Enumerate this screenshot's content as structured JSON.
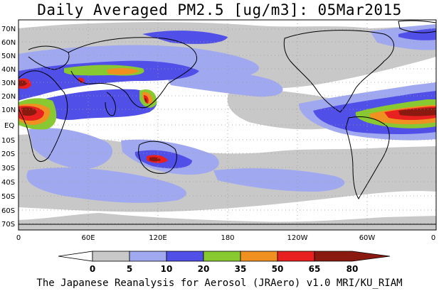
{
  "title": "Daily Averaged PM2.5 [ug/m3]: 05Mar2015",
  "credit": "The Japanese Reanalysis for Aerosol (JRAero) v1.0 MRI/KU_RIAM",
  "lat_labels": [
    "70N",
    "60N",
    "50N",
    "40N",
    "30N",
    "20N",
    "10N",
    "EQ",
    "10S",
    "20S",
    "30S",
    "40S",
    "50S",
    "60S",
    "70S"
  ],
  "lon_labels": [
    "0",
    "60E",
    "120E",
    "180",
    "120W",
    "60W",
    "0"
  ],
  "colorbar": {
    "levels": [
      "0",
      "5",
      "10",
      "20",
      "35",
      "50",
      "65",
      "80"
    ],
    "colors": [
      "#ffffff",
      "#c8c8c8",
      "#a0a8f0",
      "#5050e8",
      "#88c830",
      "#f09020",
      "#e82020",
      "#8a1a10"
    ]
  }
}
